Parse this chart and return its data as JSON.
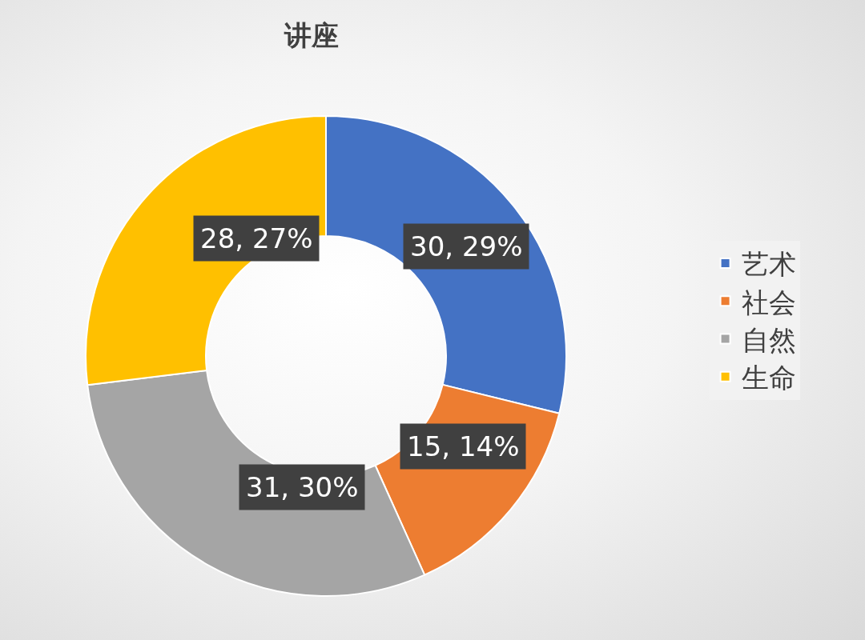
{
  "chart_data": {
    "type": "donut",
    "title": "讲座",
    "categories": [
      "艺术",
      "社会",
      "自然",
      "生命"
    ],
    "values": [
      30,
      15,
      31,
      28
    ],
    "colors": [
      "#4472c4",
      "#ed7d31",
      "#a5a5a5",
      "#ffc000"
    ],
    "value_labels": [
      "30, 29%",
      "15, 14%",
      "31, 30%",
      "28, 27%"
    ],
    "legend": "right"
  }
}
